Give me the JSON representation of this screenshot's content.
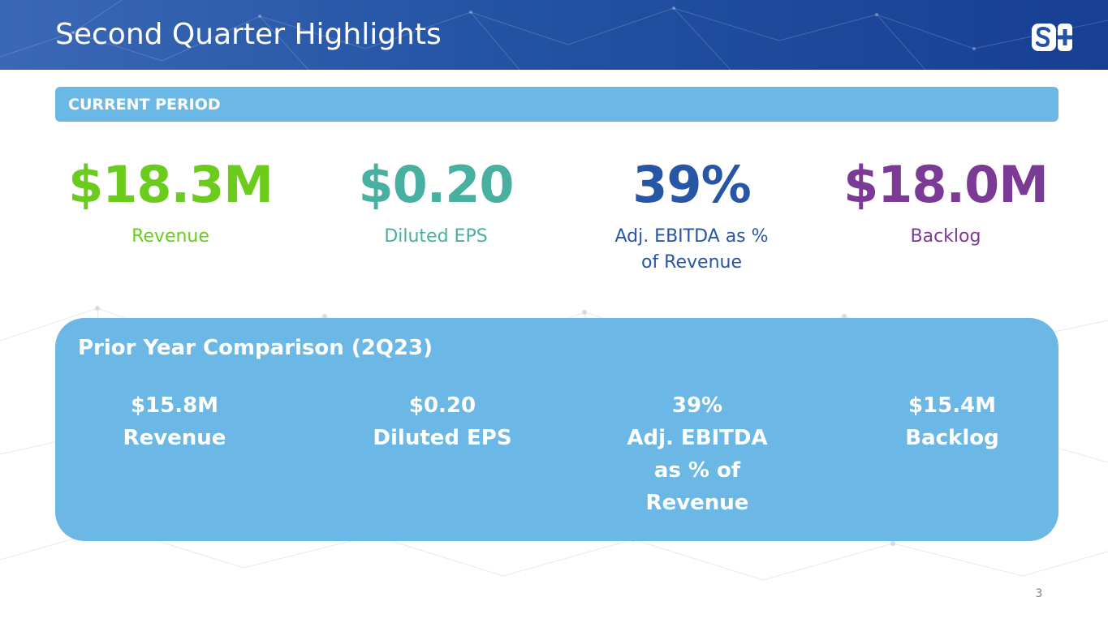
{
  "slide": {
    "title": "Second Quarter Highlights",
    "page_number": "3",
    "logo_icon": "splus-logo-icon"
  },
  "current_period": {
    "label": "CURRENT PERIOD",
    "metrics": [
      {
        "value": "$18.3M",
        "label": "Revenue",
        "color": "#6ccc1e"
      },
      {
        "value": "$0.20",
        "label": "Diluted EPS",
        "color": "#47b0a0"
      },
      {
        "value": "39%",
        "label": "Adj. EBITDA as % of Revenue",
        "color": "#2856a6"
      },
      {
        "value": "$18.0M",
        "label": "Backlog",
        "color": "#7a3a95"
      }
    ]
  },
  "prior_year": {
    "title": "Prior Year Comparison (2Q23)",
    "items": [
      {
        "value": "$15.8M",
        "label": "Revenue"
      },
      {
        "value": "$0.20",
        "label": "Diluted EPS"
      },
      {
        "value": "39%",
        "label": "Adj. EBITDA as % of Revenue"
      },
      {
        "value": "$15.4M",
        "label": "Backlog"
      }
    ]
  },
  "colors": {
    "header_blue": "#2353a3",
    "panel_blue": "#6bb8e6"
  }
}
